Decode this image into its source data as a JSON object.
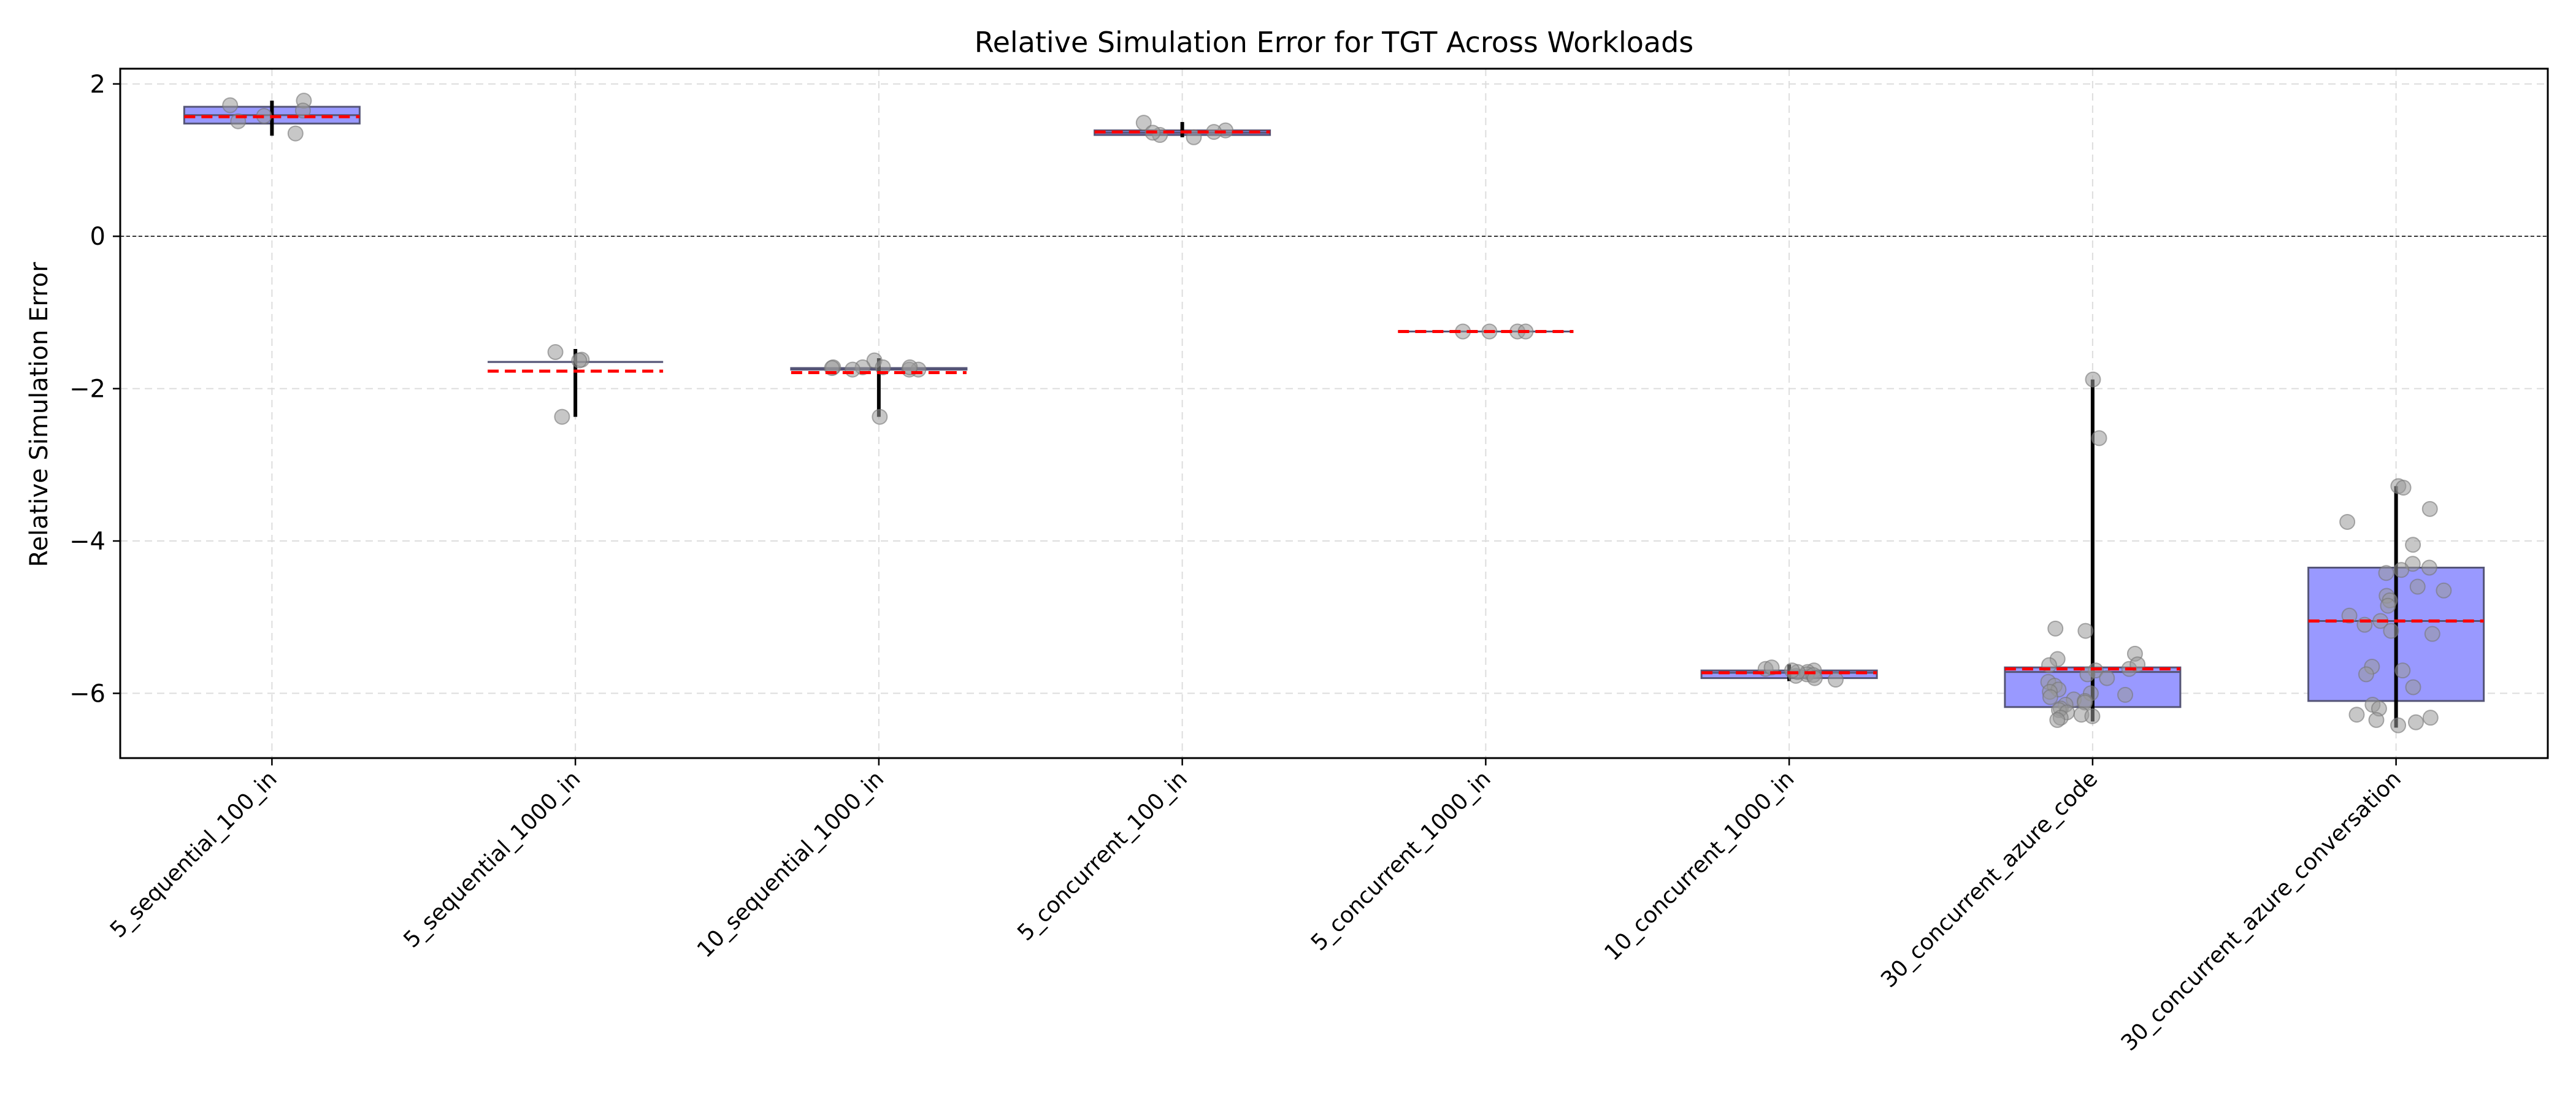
{
  "chart_data": {
    "type": "box",
    "title": "Relative Simulation Error for TGT Across Workloads",
    "xlabel": "",
    "ylabel": "Relative Simulation Error",
    "ylim": [
      -6.85,
      2.2
    ],
    "yticks": [
      2,
      0,
      -2,
      -4,
      -6
    ],
    "ytick_labels": [
      "2",
      "0",
      "−2",
      "−4",
      "−6"
    ],
    "grid": true,
    "reference_line": 0,
    "categories": [
      "5_sequential_100_in",
      "5_sequential_1000_in",
      "10_sequential_1000_in",
      "5_concurrent_100_in",
      "5_concurrent_1000_in",
      "10_concurrent_1000_in",
      "30_concurrent_azure_code",
      "30_concurrent_azure_conversation"
    ],
    "boxes": [
      {
        "q1": 1.48,
        "median": 1.59,
        "q3": 1.7,
        "mean": 1.57,
        "whisker_low": 1.32,
        "whisker_high": 1.78
      },
      {
        "q1": -1.65,
        "median": -1.65,
        "q3": -1.65,
        "mean": -1.77,
        "whisker_low": -2.37,
        "whisker_high": -1.48
      },
      {
        "q1": -1.75,
        "median": -1.75,
        "q3": -1.73,
        "mean": -1.79,
        "whisker_low": -2.37,
        "whisker_high": -1.6
      },
      {
        "q1": 1.33,
        "median": 1.36,
        "q3": 1.39,
        "mean": 1.37,
        "whisker_low": 1.3,
        "whisker_high": 1.5
      },
      {
        "q1": -1.25,
        "median": -1.25,
        "q3": -1.25,
        "mean": -1.25,
        "whisker_low": -1.25,
        "whisker_high": -1.25
      },
      {
        "q1": -5.8,
        "median": -5.73,
        "q3": -5.7,
        "mean": -5.73,
        "whisker_low": -5.84,
        "whisker_high": -5.62
      },
      {
        "q1": -6.18,
        "median": -5.72,
        "q3": -5.66,
        "mean": -5.68,
        "whisker_low": -6.37,
        "whisker_high": -1.88
      },
      {
        "q1": -6.1,
        "median": -5.05,
        "q3": -4.35,
        "mean": -5.05,
        "whisker_low": -6.45,
        "whisker_high": -3.28
      }
    ],
    "points": [
      [
        1.35,
        1.72,
        1.58,
        1.78,
        1.51,
        1.65
      ],
      [
        -1.62,
        -2.37,
        -1.52,
        -1.63
      ],
      [
        -1.63,
        -1.72,
        -1.75,
        -1.72,
        -1.75,
        -1.73,
        -1.72,
        -1.75,
        -2.37,
        -1.72
      ],
      [
        1.33,
        1.39,
        1.3,
        1.49,
        1.36,
        1.37
      ],
      [
        -1.25,
        -1.25,
        -1.25,
        -1.25
      ],
      [
        -5.7,
        -5.77,
        -5.72,
        -5.82,
        -5.75,
        -5.68,
        -5.76,
        -5.72,
        -5.66,
        -5.8,
        -5.7
      ],
      [
        -1.88,
        -2.65,
        -5.15,
        -5.18,
        -5.48,
        -5.55,
        -5.63,
        -5.68,
        -5.7,
        -5.75,
        -5.8,
        -5.85,
        -5.9,
        -5.95,
        -5.98,
        -6.0,
        -6.02,
        -6.05,
        -6.08,
        -6.1,
        -6.12,
        -6.15,
        -6.2,
        -6.22,
        -6.25,
        -6.28,
        -6.3,
        -6.32,
        -6.35,
        -5.62
      ],
      [
        -3.28,
        -3.3,
        -3.58,
        -3.75,
        -4.05,
        -4.3,
        -4.35,
        -4.38,
        -4.42,
        -4.6,
        -4.65,
        -4.72,
        -4.78,
        -4.85,
        -4.98,
        -5.05,
        -5.1,
        -5.18,
        -5.22,
        -5.65,
        -5.7,
        -5.75,
        -5.92,
        -6.15,
        -6.2,
        -6.28,
        -6.32,
        -6.35,
        -6.38,
        -6.42
      ]
    ],
    "colors": {
      "box_fill": "#9999ff",
      "box_edge": "#555577",
      "mean_line": "#ff0000",
      "whisker": "#000000",
      "point": "#999999",
      "grid": "#dddddd"
    }
  }
}
